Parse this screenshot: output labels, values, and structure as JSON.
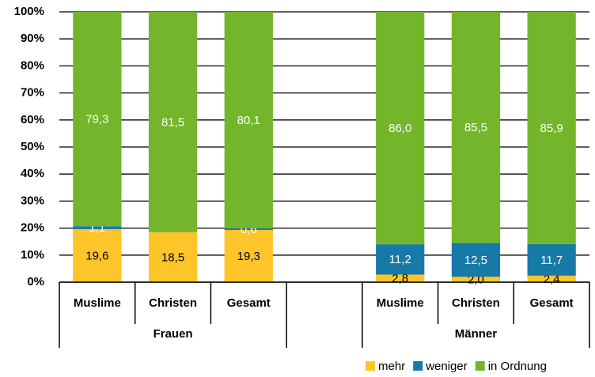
{
  "chart_data": {
    "type": "stacked_bar",
    "categories": [
      "Muslime",
      "Christen",
      "Gesamt",
      null,
      "Muslime",
      "Christen",
      "Gesamt"
    ],
    "group_labels": [
      "Frauen",
      "Männer"
    ],
    "series": [
      {
        "name": "mehr",
        "color": "#fdc52a",
        "values": [
          19.6,
          18.5,
          19.3,
          null,
          2.8,
          2.0,
          2.4
        ],
        "value_labels": [
          "19,6",
          "18,5",
          "19,3",
          null,
          "2,8",
          "2,0",
          "2,4"
        ],
        "label_color": "#000000"
      },
      {
        "name": "weniger",
        "color": "#1779a6",
        "values": [
          1.1,
          null,
          0.6,
          null,
          11.2,
          12.5,
          11.7
        ],
        "value_labels": [
          "1,1",
          null,
          "0,6",
          null,
          "11,2",
          "12,5",
          "11,7"
        ],
        "label_color": "#ffffff"
      },
      {
        "name": "in Ordnung",
        "color": "#73b52b",
        "values": [
          79.3,
          81.5,
          80.1,
          null,
          86.0,
          85.5,
          85.9
        ],
        "value_labels": [
          "79,3",
          "81,5",
          "80,1",
          null,
          "86,0",
          "85,5",
          "85,9"
        ],
        "label_color": "#ffffff"
      }
    ],
    "ylim": [
      0,
      100
    ],
    "yticks": [
      {
        "value": 0,
        "label": "0%"
      },
      {
        "value": 10,
        "label": "10%"
      },
      {
        "value": 20,
        "label": "20%"
      },
      {
        "value": 30,
        "label": "30%"
      },
      {
        "value": 40,
        "label": "40%"
      },
      {
        "value": 50,
        "label": "50%"
      },
      {
        "value": 60,
        "label": "60%"
      },
      {
        "value": 70,
        "label": "70%"
      },
      {
        "value": 80,
        "label": "80%"
      },
      {
        "value": 90,
        "label": "90%"
      },
      {
        "value": 100,
        "label": "100%"
      }
    ],
    "grid": true,
    "legend": "bottom-right"
  }
}
